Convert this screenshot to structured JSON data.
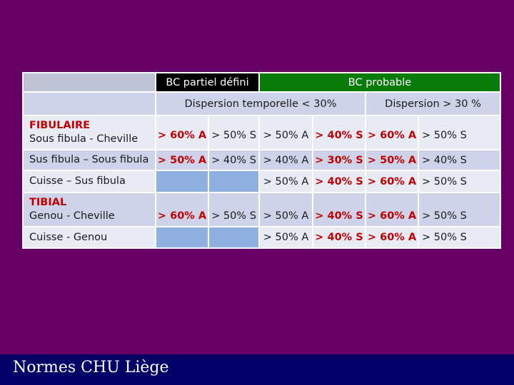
{
  "table": {
    "header": {
      "bc_partiel": "BC partiel défini",
      "bc_probable": "BC probable"
    },
    "subheader": {
      "dispersion_low": "Dispersion temporelle < 30%",
      "dispersion_high": "Dispersion > 30 %"
    },
    "rows": [
      {
        "group": "FIBULAIRE",
        "label": "Sous fibula - Cheville",
        "c1": "> 60% A",
        "c2": "> 50% S",
        "c3": "> 50% A",
        "c4": "> 40% S",
        "c5": "> 60% A",
        "c6": "> 50% S"
      },
      {
        "label": "Sus fibula – Sous fibula",
        "c1": "> 50% A",
        "c2": "> 40% S",
        "c3": "> 40% A",
        "c4": "> 30% S",
        "c5": "> 50% A",
        "c6": "> 40% S"
      },
      {
        "label": "Cuisse – Sus fibula",
        "c3": "> 50% A",
        "c4": "> 40% S",
        "c5": "> 60% A",
        "c6": "> 50% S"
      },
      {
        "group": "TIBIAL",
        "label": "Genou - Cheville",
        "c1": "> 60% A",
        "c2": "> 50% S",
        "c3": "> 50% A",
        "c4": "> 40% S",
        "c5": "> 60% A",
        "c6": "> 50% S"
      },
      {
        "label": "Cuisse - Genou",
        "c3": "> 50% A",
        "c4": "> 40% S",
        "c5": "> 60% A",
        "c6": "> 50% S"
      }
    ]
  },
  "footer": {
    "title": "Normes CHU Liège"
  },
  "colors": {
    "background": "#660066",
    "footer": "#000066",
    "header_green": "#0a7a0a",
    "highlight_red": "#c00000",
    "empty_cell_blue": "#91b0e2"
  }
}
